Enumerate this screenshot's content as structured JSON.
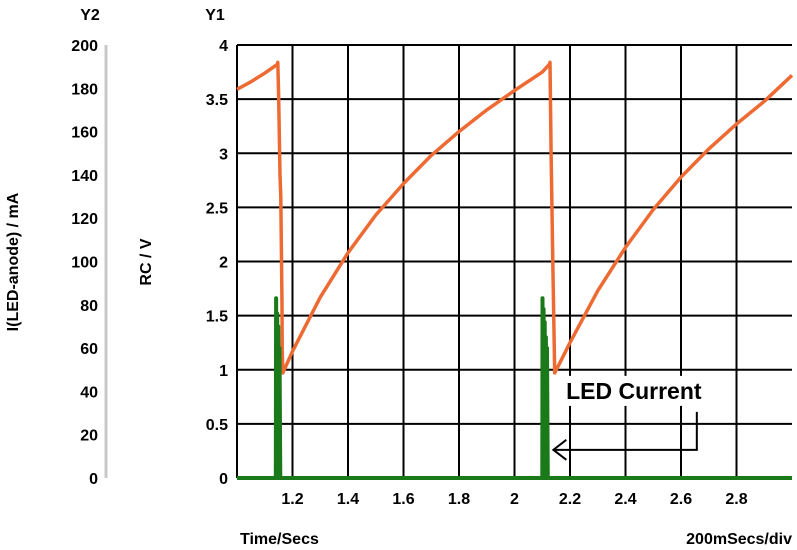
{
  "chart_data": {
    "type": "line",
    "x_axis": {
      "title": "Time/Secs",
      "scale_note": "200mSecs/div",
      "range": [
        1.0,
        3.0
      ],
      "ticks": [
        1.2,
        1.4,
        1.6,
        1.8,
        2,
        2.2,
        2.4,
        2.6,
        2.8
      ],
      "tick_labels": [
        "1.2",
        "1.4",
        "1.6",
        "1.8",
        "2",
        "2.2",
        "2.4",
        "2.6",
        "2.8"
      ]
    },
    "y1_axis": {
      "header": "Y1",
      "title": "RC / V",
      "range": [
        0,
        4
      ],
      "ticks": [
        0,
        0.5,
        1,
        1.5,
        2,
        2.5,
        3,
        3.5,
        4
      ],
      "tick_labels": [
        "0",
        "0.5",
        "1",
        "1.5",
        "2",
        "2.5",
        "3",
        "3.5",
        "4"
      ]
    },
    "y2_axis": {
      "header": "Y2",
      "title": "I(LED-anode) / mA",
      "range": [
        0,
        200
      ],
      "ticks": [
        0,
        20,
        40,
        60,
        80,
        100,
        120,
        140,
        160,
        180,
        200
      ],
      "tick_labels": [
        "0",
        "20",
        "40",
        "60",
        "80",
        "100",
        "120",
        "140",
        "160",
        "180",
        "200"
      ]
    },
    "grid": true,
    "series": [
      {
        "axis": "y1",
        "color": "#ee6a33",
        "points": [
          [
            1.0,
            3.59
          ],
          [
            1.05,
            3.66
          ],
          [
            1.1,
            3.74
          ],
          [
            1.145,
            3.82
          ],
          [
            1.147,
            3.84
          ],
          [
            1.15,
            3.55
          ],
          [
            1.155,
            2.8
          ],
          [
            1.158,
            2.6
          ],
          [
            1.16,
            2.1
          ],
          [
            1.162,
            1.6
          ],
          [
            1.163,
            1.2
          ],
          [
            1.165,
            0.97
          ],
          [
            1.2,
            1.17
          ],
          [
            1.3,
            1.67
          ],
          [
            1.4,
            2.08
          ],
          [
            1.5,
            2.43
          ],
          [
            1.6,
            2.72
          ],
          [
            1.7,
            2.98
          ],
          [
            1.8,
            3.2
          ],
          [
            1.9,
            3.4
          ],
          [
            2.0,
            3.58
          ],
          [
            2.1,
            3.75
          ],
          [
            2.125,
            3.82
          ],
          [
            2.128,
            3.84
          ],
          [
            2.132,
            3.0
          ],
          [
            2.138,
            2.0
          ],
          [
            2.145,
            0.97
          ],
          [
            2.2,
            1.25
          ],
          [
            2.3,
            1.73
          ],
          [
            2.4,
            2.13
          ],
          [
            2.5,
            2.48
          ],
          [
            2.6,
            2.78
          ],
          [
            2.7,
            3.04
          ],
          [
            2.8,
            3.27
          ],
          [
            2.9,
            3.48
          ],
          [
            3.0,
            3.72
          ]
        ]
      },
      {
        "axis": "y2",
        "color": "#1a7a1a",
        "points": [
          [
            1.0,
            0
          ],
          [
            1.14,
            0
          ],
          [
            1.141,
            83
          ],
          [
            1.144,
            0
          ],
          [
            1.145,
            76
          ],
          [
            1.148,
            0
          ],
          [
            1.149,
            70
          ],
          [
            1.152,
            0
          ],
          [
            1.153,
            60
          ],
          [
            1.156,
            0
          ],
          [
            2.1,
            0
          ],
          [
            2.101,
            83
          ],
          [
            2.104,
            0
          ],
          [
            2.105,
            78
          ],
          [
            2.108,
            0
          ],
          [
            2.109,
            72
          ],
          [
            2.112,
            0
          ],
          [
            2.113,
            65
          ],
          [
            2.116,
            0
          ],
          [
            2.117,
            60
          ],
          [
            2.12,
            0
          ],
          [
            3.0,
            0
          ]
        ]
      }
    ],
    "annotations": [
      {
        "text": "LED Current",
        "x": 2.43,
        "y": 0.74,
        "arrow_to": [
          2.14,
          0.26
        ]
      }
    ]
  }
}
